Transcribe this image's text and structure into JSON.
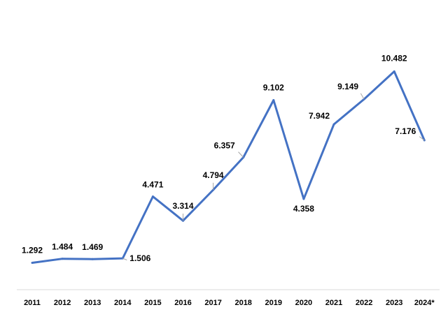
{
  "chart_data": {
    "type": "line",
    "title": "",
    "xlabel": "",
    "ylabel": "",
    "x": [
      "2011",
      "2012",
      "2013",
      "2014",
      "2015",
      "2016",
      "2017",
      "2018",
      "2019",
      "2020",
      "2021",
      "2022",
      "2023",
      "2024*"
    ],
    "series": [
      {
        "values": [
          1.292,
          1.484,
          1.469,
          1.506,
          4.471,
          3.314,
          4.794,
          6.357,
          9.102,
          4.358,
          7.942,
          9.149,
          10.482,
          7.176
        ],
        "labels": [
          "1.292",
          "1.484",
          "1.469",
          "1.506",
          "4.471",
          "3.314",
          "4.794",
          "6.357",
          "9.102",
          "4.358",
          "7.942",
          "9.149",
          "10.482",
          "7.176"
        ],
        "color": "#4472C4"
      }
    ],
    "ylim": [
      0,
      11.5
    ],
    "grid": false,
    "legend": "none",
    "axis_color": "#d9d9d9"
  }
}
